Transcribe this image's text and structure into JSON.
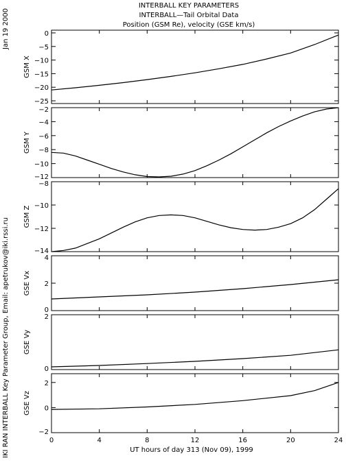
{
  "titles": {
    "line1": "INTERBALL KEY PARAMETERS",
    "line2": "INTERBALL—Tail Orbital Data",
    "line3": "Position (GSM Re), velocity (GSE km/s)"
  },
  "side": {
    "date": "Jan 19 2000",
    "credit": "IKI RAN INTERBALL Key Parameter Group, Email: apetrukov@iki.rssi.ru"
  },
  "chart_data": {
    "type": "line",
    "xlabel": "UT hours of day 313 (Nov 09), 1999",
    "xlim": [
      0,
      24
    ],
    "xticks": [
      0,
      4,
      8,
      12,
      16,
      20,
      24
    ],
    "panels": [
      {
        "ylabel": "GSM X",
        "ylim": [
          -26,
          1
        ],
        "yticks": [
          0,
          -5,
          -10,
          -15,
          -20,
          -25
        ],
        "x": [
          0,
          2,
          4,
          6,
          8,
          10,
          12,
          14,
          16,
          18,
          20,
          22,
          24
        ],
        "y": [
          -21.0,
          -20.2,
          -19.3,
          -18.3,
          -17.2,
          -16.0,
          -14.7,
          -13.2,
          -11.6,
          -9.6,
          -7.4,
          -4.3,
          -0.8
        ]
      },
      {
        "ylabel": "GSM Y",
        "ylim": [
          -12,
          -2
        ],
        "yticks": [
          -2,
          -4,
          -6,
          -8,
          -10,
          -12
        ],
        "x": [
          0,
          1,
          2,
          3,
          4,
          5,
          6,
          7,
          8,
          9,
          10,
          11,
          12,
          13,
          14,
          15,
          16,
          17,
          18,
          19,
          20,
          21,
          22,
          23,
          24
        ],
        "y": [
          -8.4,
          -8.5,
          -8.9,
          -9.5,
          -10.1,
          -10.7,
          -11.2,
          -11.6,
          -11.85,
          -11.9,
          -11.8,
          -11.5,
          -11.0,
          -10.3,
          -9.5,
          -8.6,
          -7.6,
          -6.6,
          -5.6,
          -4.7,
          -3.9,
          -3.2,
          -2.6,
          -2.2,
          -2.0
        ]
      },
      {
        "ylabel": "GSM Z",
        "ylim": [
          -14,
          -8
        ],
        "yticks": [
          -8,
          -10,
          -12,
          -14
        ],
        "x": [
          0,
          1,
          2,
          3,
          4,
          5,
          6,
          7,
          8,
          9,
          10,
          11,
          12,
          13,
          14,
          15,
          16,
          17,
          18,
          19,
          20,
          21,
          22,
          23,
          24
        ],
        "y": [
          -14.0,
          -13.9,
          -13.7,
          -13.3,
          -12.9,
          -12.4,
          -11.9,
          -11.45,
          -11.1,
          -10.9,
          -10.85,
          -10.9,
          -11.1,
          -11.4,
          -11.7,
          -11.95,
          -12.1,
          -12.15,
          -12.1,
          -11.9,
          -11.6,
          -11.1,
          -10.4,
          -9.5,
          -8.6
        ]
      },
      {
        "ylabel": "GSE Vx",
        "ylim": [
          0,
          4
        ],
        "yticks": [
          0,
          2,
          4
        ],
        "x": [
          0,
          4,
          8,
          12,
          16,
          20,
          24
        ],
        "y": [
          0.85,
          1.0,
          1.15,
          1.35,
          1.6,
          1.9,
          2.25
        ]
      },
      {
        "ylabel": "GSE Vy",
        "ylim": [
          0,
          2
        ],
        "yticks": [
          0,
          2
        ],
        "x": [
          0,
          4,
          8,
          12,
          16,
          20,
          24
        ],
        "y": [
          0.1,
          0.15,
          0.22,
          0.3,
          0.4,
          0.52,
          0.72
        ]
      },
      {
        "ylabel": "GSE Vz",
        "ylim": [
          -2,
          2.7
        ],
        "yticks": [
          2,
          0,
          -2
        ],
        "x": [
          0,
          4,
          8,
          12,
          16,
          20,
          22,
          24
        ],
        "y": [
          -0.15,
          -0.1,
          0.05,
          0.25,
          0.55,
          0.95,
          1.35,
          2.0
        ]
      }
    ]
  }
}
